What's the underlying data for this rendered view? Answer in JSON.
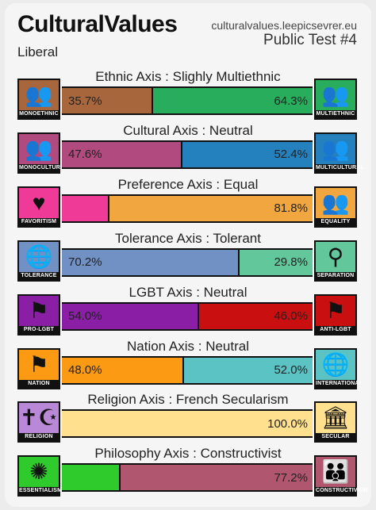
{
  "header": {
    "title": "CulturalValues",
    "url": "culturalvalues.leepicsevrer.eu",
    "edition": "Public Test #4",
    "ideology": "Liberal"
  },
  "axes": [
    {
      "title": "Ethnic Axis : Slighly Multiethnic",
      "left": {
        "label": "MONOETHNIC",
        "icon": "crowd-icon",
        "glyph": "👥",
        "color": "#a8663d",
        "value": 35.7,
        "pct": "35.7%"
      },
      "right": {
        "label": "MULTIETHNIC",
        "icon": "diverse-crowd-icon",
        "glyph": "👥",
        "color": "#27ad5c",
        "value": 64.3,
        "pct": "64.3%"
      }
    },
    {
      "title": "Cultural Axis : Neutral",
      "left": {
        "label": "MONOCULTURAL",
        "icon": "group-icon",
        "glyph": "👥",
        "color": "#b14a7f",
        "value": 47.6,
        "pct": "47.6%"
      },
      "right": {
        "label": "MULTICULTURAL",
        "icon": "diverse-group-icon",
        "glyph": "👥",
        "color": "#2581bd",
        "value": 52.4,
        "pct": "52.4%"
      }
    },
    {
      "title": "Preference Axis : Equal",
      "left": {
        "label": "FAVORITISM",
        "icon": "heart-person-icon",
        "glyph": "♥",
        "color": "#ef3a98",
        "value": 18.2,
        "pct": ""
      },
      "right": {
        "label": "EQUALITY",
        "icon": "equal-people-icon",
        "glyph": "👥",
        "color": "#f1a63f",
        "value": 81.8,
        "pct": "81.8%"
      }
    },
    {
      "title": "Tolerance Axis : Tolerant",
      "left": {
        "label": "TOLERANCE",
        "icon": "globe-people-icon",
        "glyph": "🌐",
        "color": "#7190c4",
        "value": 70.2,
        "pct": "70.2%"
      },
      "right": {
        "label": "SEPARATION",
        "icon": "separated-people-icon",
        "glyph": "⚲",
        "color": "#62c89b",
        "value": 29.8,
        "pct": "29.8%"
      }
    },
    {
      "title": "LGBT Axis : Neutral",
      "left": {
        "label": "PRO-LGBT",
        "icon": "rainbow-flag-icon",
        "glyph": "⚑",
        "color": "#8a1fa6",
        "value": 54.0,
        "pct": "54.0%"
      },
      "right": {
        "label": "ANTI-LGBT",
        "icon": "crossed-flag-icon",
        "glyph": "⚑",
        "color": "#c90f0f",
        "value": 46.0,
        "pct": "46.0%"
      }
    },
    {
      "title": "Nation Axis : Neutral",
      "left": {
        "label": "NATION",
        "icon": "flag-icon",
        "glyph": "⚑",
        "color": "#fd9a14",
        "value": 48.0,
        "pct": "48.0%"
      },
      "right": {
        "label": "INTERNATIONAL",
        "icon": "globe-icon",
        "glyph": "🌐",
        "color": "#5cc3c4",
        "value": 52.0,
        "pct": "52.0%"
      }
    },
    {
      "title": "Religion Axis : French Secularism",
      "left": {
        "label": "RELIGION",
        "icon": "religious-symbols-icon",
        "glyph": "✝☪",
        "color": "#b988d6",
        "value": 0.0,
        "pct": ""
      },
      "right": {
        "label": "SECULAR",
        "icon": "school-icon",
        "glyph": "🏛",
        "color": "#ffe08e",
        "value": 100.0,
        "pct": "100.0%"
      }
    },
    {
      "title": "Philosophy Axis : Constructivist",
      "left": {
        "label": "ESSENTIALISM",
        "icon": "sunburst-icon",
        "glyph": "✺",
        "color": "#2fca2c",
        "value": 22.8,
        "pct": ""
      },
      "right": {
        "label": "CONSTRUCTIVISM",
        "icon": "family-icon",
        "glyph": "👪",
        "color": "#b1566f",
        "value": 77.2,
        "pct": "77.2%"
      }
    }
  ]
}
